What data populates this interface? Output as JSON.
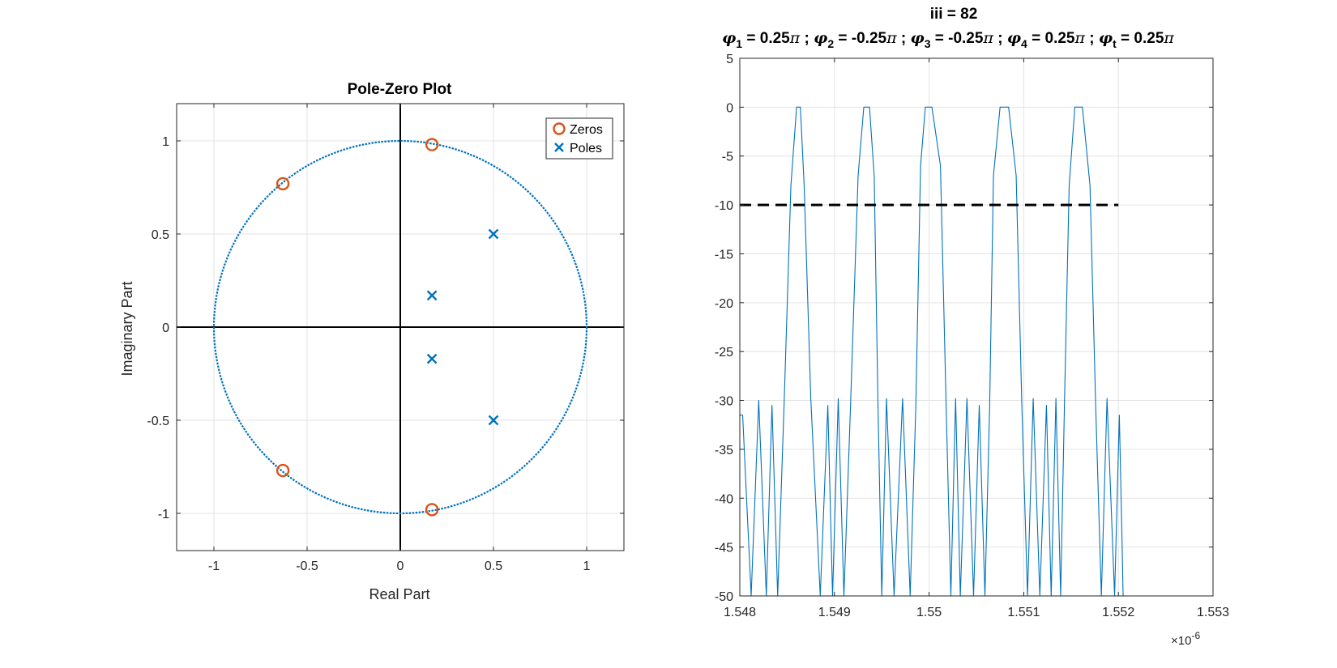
{
  "colors": {
    "blue": "#0072BD",
    "orange": "#D95319",
    "grid": "#e3e3e3",
    "axis": "#262626",
    "black": "#000000"
  },
  "chart_data": [
    {
      "type": "scatter",
      "title": "Pole-Zero Plot",
      "xlabel": "Real Part",
      "ylabel": "Imaginary Part",
      "xlim": [
        -1.2,
        1.2
      ],
      "ylim": [
        -1.2,
        1.2
      ],
      "xticks": [
        -1,
        -0.5,
        0,
        0.5,
        1
      ],
      "xtick_labels": [
        "-1",
        "-0.5",
        "0",
        "0.5",
        "1"
      ],
      "yticks": [
        -1,
        -0.5,
        0,
        0.5,
        1
      ],
      "ytick_labels": [
        "-1",
        "-0.5",
        "0",
        "0.5",
        "1"
      ],
      "grid": true,
      "legend_position": "top-right",
      "unit_circle": true,
      "series": [
        {
          "name": "Zeros",
          "marker": "circle",
          "color": "#D95319",
          "points": [
            [
              0.17,
              0.98
            ],
            [
              -0.63,
              0.77
            ],
            [
              -0.63,
              -0.77
            ],
            [
              0.17,
              -0.98
            ]
          ]
        },
        {
          "name": "Poles",
          "marker": "x",
          "color": "#0072BD",
          "points": [
            [
              0.5,
              0.5
            ],
            [
              0.17,
              0.17
            ],
            [
              0.17,
              -0.17
            ],
            [
              0.5,
              -0.5
            ]
          ]
        }
      ]
    },
    {
      "type": "line",
      "title_line1": "iii = 82",
      "title_line2_parts": [
        {
          "sym": "φ",
          "sub": "1",
          "val": " = 0.25",
          "pi": "π",
          "sep": " ; "
        },
        {
          "sym": "φ",
          "sub": "2",
          "val": " = -0.25",
          "pi": "π",
          "sep": " ; "
        },
        {
          "sym": "φ",
          "sub": "3",
          "val": " = -0.25",
          "pi": "π",
          "sep": " ; "
        },
        {
          "sym": "φ",
          "sub": "4",
          "val": " = 0.25",
          "pi": "π",
          "sep": " ; "
        },
        {
          "sym": "φ",
          "sub": "t",
          "val": " = 0.25",
          "pi": "π",
          "sep": ""
        }
      ],
      "xlim": [
        1.548,
        1.553
      ],
      "ylim": [
        -50,
        5
      ],
      "x_exponent_base": "×10",
      "x_exponent_power": "-6",
      "xticks": [
        1.548,
        1.549,
        1.55,
        1.551,
        1.552,
        1.553
      ],
      "xtick_labels": [
        "1.548",
        "1.549",
        "1.55",
        "1.551",
        "1.552",
        "1.553"
      ],
      "yticks": [
        5,
        0,
        -5,
        -10,
        -15,
        -20,
        -25,
        -30,
        -35,
        -40,
        -45,
        -50
      ],
      "ytick_labels": [
        "5",
        "0",
        "-5",
        "-10",
        "-15",
        "-20",
        "-25",
        "-30",
        "-35",
        "-40",
        "-45",
        "-50"
      ],
      "grid": true,
      "threshold": {
        "y": -10,
        "x_range": [
          1.548,
          1.552
        ],
        "style": "dashed",
        "color": "#000000"
      },
      "series": [
        {
          "color": "#0072BD",
          "x": [
            1.548,
            1.54803,
            1.54812,
            1.5482,
            1.54828,
            1.54834,
            1.5484,
            1.54847,
            1.54854,
            1.5486,
            1.54864,
            1.54868,
            1.54875,
            1.54885,
            1.54893,
            1.54898,
            1.54904,
            1.5491,
            1.54917,
            1.54925,
            1.54931,
            1.54937,
            1.54942,
            1.54946,
            1.5495,
            1.54955,
            1.54963,
            1.54972,
            1.5498,
            1.54986,
            1.54991,
            1.54996,
            1.55003,
            1.55012,
            1.55018,
            1.55023,
            1.55028,
            1.55033,
            1.5504,
            1.55047,
            1.55053,
            1.55059,
            1.55064,
            1.55068,
            1.55075,
            1.55084,
            1.55092,
            1.55098,
            1.55104,
            1.5511,
            1.55117,
            1.55124,
            1.55129,
            1.55134,
            1.55139,
            1.55143,
            1.55148,
            1.55154,
            1.55162,
            1.5517,
            1.55176,
            1.55182,
            1.55188,
            1.55196,
            1.55201,
            1.55204,
            1.55205
          ],
          "y": [
            -31.5,
            -31.5,
            -50,
            -30,
            -50,
            -30.5,
            -50,
            -29.8,
            -8,
            0,
            0,
            -8,
            -29.8,
            -50,
            -30.5,
            -50,
            -29.8,
            -50,
            -30.5,
            -7,
            0,
            0,
            -7,
            -30.5,
            -50,
            -29.8,
            -50,
            -29.8,
            -50,
            -30.5,
            -6,
            0,
            0,
            -6,
            -30.5,
            -50,
            -29.8,
            -50,
            -29.8,
            -50,
            -30.5,
            -50,
            -30.5,
            -7,
            0,
            0,
            -7,
            -30.5,
            -50,
            -29.8,
            -50,
            -30.5,
            -50,
            -29.8,
            -50,
            -30.5,
            -8,
            0,
            0,
            -8,
            -30.5,
            -50,
            -29.8,
            -50,
            -31.5,
            -45,
            -50
          ]
        }
      ]
    }
  ]
}
